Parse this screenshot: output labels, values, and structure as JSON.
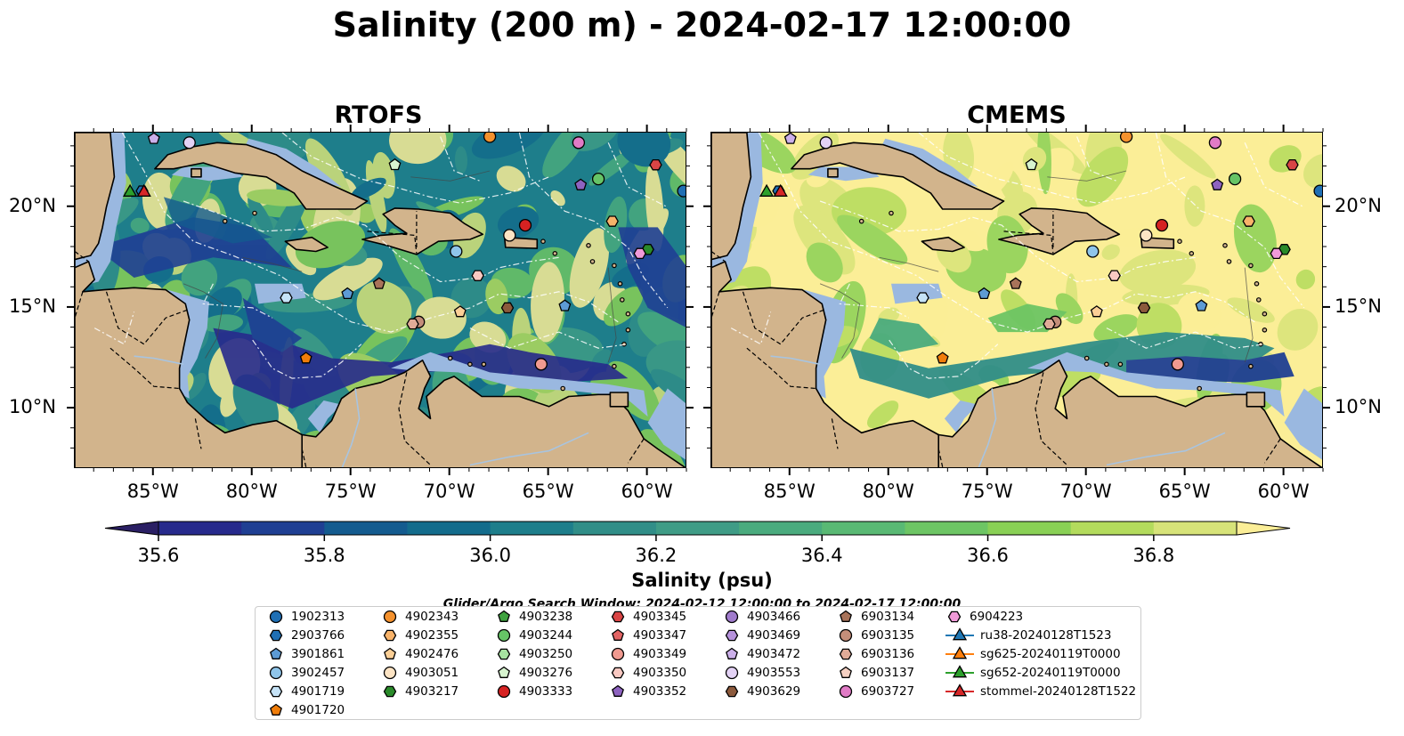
{
  "title": "Salinity (200 m) - 2024-02-17 12:00:00",
  "panels": [
    {
      "title": "RTOFS",
      "palette": "high"
    },
    {
      "title": "CMEMS",
      "palette": "low"
    }
  ],
  "axes": {
    "lon_ticks": [
      "85°W",
      "80°W",
      "75°W",
      "70°W",
      "65°W",
      "60°W"
    ],
    "lat_ticks": [
      "20°N",
      "15°N",
      "10°N"
    ]
  },
  "colorbar": {
    "label": "Salinity (psu)",
    "ticks": [
      "35.6",
      "35.8",
      "36.0",
      "36.2",
      "36.4",
      "36.6",
      "36.8"
    ],
    "colors": [
      "#2a1f64",
      "#272a8c",
      "#1f3f93",
      "#145b8f",
      "#136c8c",
      "#1e7e8b",
      "#318e88",
      "#3f9c86",
      "#4aab7e",
      "#59b974",
      "#6dc564",
      "#89d055",
      "#b3db5c",
      "#d7e379",
      "#fbee97"
    ]
  },
  "search_window": "Glider/Argo Search Window: 2024-02-12 12:00:00 to 2024-02-17 12:00:00",
  "legend": [
    {
      "label": "1902313",
      "marker": "circle",
      "color": "#1f6fb4"
    },
    {
      "label": "2903766",
      "marker": "hexagon",
      "color": "#1f6fb4"
    },
    {
      "label": "3901861",
      "marker": "pentagon",
      "color": "#5d9bd5"
    },
    {
      "label": "3902457",
      "marker": "circle",
      "color": "#8fc5ea"
    },
    {
      "label": "4901719",
      "marker": "hexagon",
      "color": "#c6e3f7"
    },
    {
      "label": "4901720",
      "marker": "pentagon",
      "color": "#f07d0a"
    },
    {
      "label": "4902343",
      "marker": "circle",
      "color": "#f5922e"
    },
    {
      "label": "4902355",
      "marker": "hexagon",
      "color": "#f8b36a"
    },
    {
      "label": "4902476",
      "marker": "pentagon",
      "color": "#fbcf96"
    },
    {
      "label": "4903051",
      "marker": "circle",
      "color": "#fde4c4"
    },
    {
      "label": "4903217",
      "marker": "hexagon",
      "color": "#2a8a2a"
    },
    {
      "label": "4903238",
      "marker": "pentagon",
      "color": "#3fa23f"
    },
    {
      "label": "4903244",
      "marker": "circle",
      "color": "#66c466"
    },
    {
      "label": "4903250",
      "marker": "hexagon",
      "color": "#a6e2a0"
    },
    {
      "label": "4903276",
      "marker": "pentagon",
      "color": "#d7f4cf"
    },
    {
      "label": "4903333",
      "marker": "circle",
      "color": "#d62222"
    },
    {
      "label": "4903345",
      "marker": "hexagon",
      "color": "#d94545"
    },
    {
      "label": "4903347",
      "marker": "pentagon",
      "color": "#e36464"
    },
    {
      "label": "4903349",
      "marker": "circle",
      "color": "#f09a90"
    },
    {
      "label": "4903350",
      "marker": "hexagon",
      "color": "#f9c9c2"
    },
    {
      "label": "4903352",
      "marker": "pentagon",
      "color": "#8e63c0"
    },
    {
      "label": "4903466",
      "marker": "circle",
      "color": "#a07bcc"
    },
    {
      "label": "4903469",
      "marker": "hexagon",
      "color": "#b692dc"
    },
    {
      "label": "4903472",
      "marker": "pentagon",
      "color": "#ccb0ea"
    },
    {
      "label": "4903553",
      "marker": "circle",
      "color": "#e3d2f5"
    },
    {
      "label": "4903629",
      "marker": "hexagon",
      "color": "#8c5a3c"
    },
    {
      "label": "6903134",
      "marker": "pentagon",
      "color": "#a8735a"
    },
    {
      "label": "6903135",
      "marker": "circle",
      "color": "#c48e7a"
    },
    {
      "label": "6903136",
      "marker": "hexagon",
      "color": "#e0ab98"
    },
    {
      "label": "6903137",
      "marker": "pentagon",
      "color": "#f5d0c2"
    },
    {
      "label": "6903727",
      "marker": "circle",
      "color": "#e17bc6"
    },
    {
      "label": "6904223",
      "marker": "hexagon",
      "color": "#f09ad8"
    },
    {
      "label": "ru38-20240128T1523",
      "marker": "triangle",
      "color": "#1f77b4"
    },
    {
      "label": "sg625-20240119T0000",
      "marker": "triangle",
      "color": "#ff7f0e"
    },
    {
      "label": "sg652-20240119T0000",
      "marker": "triangle",
      "color": "#2ca02c"
    },
    {
      "label": "stommel-20240128T1522",
      "marker": "triangle",
      "color": "#d62728"
    }
  ],
  "floats_on_map": [
    {
      "label": "1902313",
      "lon": -58.2,
      "lat": 20.8
    },
    {
      "label": "2903766",
      "lon": -85.6,
      "lat": 20.8
    },
    {
      "label": "3901861",
      "lon": -75.2,
      "lat": 15.7
    },
    {
      "label": "3901861",
      "lon": -64.2,
      "lat": 15.1
    },
    {
      "label": "3902457",
      "lon": -69.7,
      "lat": 17.8
    },
    {
      "label": "4901719",
      "lon": -78.3,
      "lat": 15.5
    },
    {
      "label": "4901720",
      "lon": -77.3,
      "lat": 12.5
    },
    {
      "label": "4902343",
      "lon": -68.0,
      "lat": 23.5
    },
    {
      "label": "4902355",
      "lon": -61.8,
      "lat": 19.3
    },
    {
      "label": "4902476",
      "lon": -69.5,
      "lat": 14.8
    },
    {
      "label": "4903051",
      "lon": -67.0,
      "lat": 18.6
    },
    {
      "label": "4903217",
      "lon": -60.0,
      "lat": 17.9
    },
    {
      "label": "4903244",
      "lon": -62.5,
      "lat": 21.4
    },
    {
      "label": "4903276",
      "lon": -72.8,
      "lat": 22.1
    },
    {
      "label": "4903333",
      "lon": -66.2,
      "lat": 19.1
    },
    {
      "label": "4903345",
      "lon": -59.6,
      "lat": 22.1
    },
    {
      "label": "4903349",
      "lon": -65.4,
      "lat": 12.2
    },
    {
      "label": "4903350",
      "lon": -68.6,
      "lat": 16.6
    },
    {
      "label": "4903352",
      "lon": -63.4,
      "lat": 21.1
    },
    {
      "label": "4903553",
      "lon": -83.2,
      "lat": 23.2
    },
    {
      "label": "4903472",
      "lon": -85.0,
      "lat": 23.4
    },
    {
      "label": "6903134",
      "lon": -73.6,
      "lat": 16.2
    },
    {
      "label": "4903629",
      "lon": -67.1,
      "lat": 15.0
    },
    {
      "label": "6903135",
      "lon": -71.6,
      "lat": 14.3
    },
    {
      "label": "6903136",
      "lon": -71.9,
      "lat": 14.2
    },
    {
      "label": "6903727",
      "lon": -63.5,
      "lat": 23.2
    },
    {
      "label": "6904223",
      "lon": -60.4,
      "lat": 17.7
    },
    {
      "label": "sg652-20240119T0000",
      "lon": -86.2,
      "lat": 20.8
    },
    {
      "label": "stommel-20240128T1522",
      "lon": -85.5,
      "lat": 20.8
    }
  ]
}
